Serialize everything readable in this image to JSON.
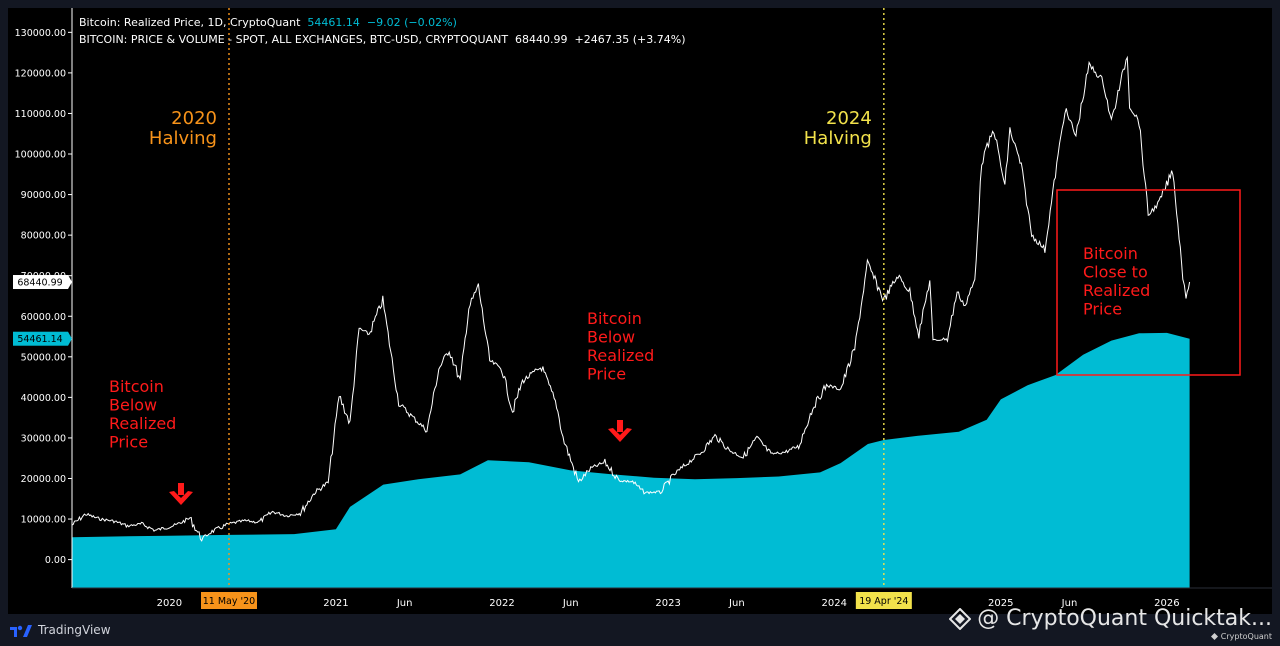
{
  "legend": {
    "line1_name": "Bitcoin: Realized Price, 1D, CryptoQuant",
    "line1_value": "54461.14",
    "line1_change": "−9.02 (−0.02%)",
    "line2_name": "BITCOIN: PRICE & VOLUME - SPOT, ALL EXCHANGES, BTC-USD, CRYPTOQUANT",
    "line2_value": "68440.99",
    "line2_change": "+2467.35 (+3.74%)"
  },
  "footer": {
    "brand": "TradingView",
    "watermark": "@ CryptoQuant Quicktak...",
    "watermark_small": "CryptoQuant"
  },
  "colors": {
    "background": "#000000",
    "frame": "#131722",
    "realized_fill": "#00bcd4",
    "price_line": "#ffffff",
    "halving_2020": "#f7931a",
    "halving_2024": "#f2e24b",
    "annotation_red": "#ff1a1a"
  },
  "chart_data": {
    "type": "area",
    "ylim": [
      -7000,
      136000
    ],
    "xlim": [
      "2019-06-01",
      "2026-08-20"
    ],
    "y_ticks": [
      "130000.00",
      "120000.00",
      "110000.00",
      "100000.00",
      "90000.00",
      "80000.00",
      "70000.00",
      "60000.00",
      "50000.00",
      "40000.00",
      "30000.00",
      "20000.00",
      "10000.00",
      "0.00"
    ],
    "y_tick_values": [
      130000,
      120000,
      110000,
      100000,
      90000,
      80000,
      70000,
      60000,
      50000,
      40000,
      30000,
      20000,
      10000,
      0
    ],
    "x_ticks": [
      {
        "label": "2020",
        "date": "2020-01-01"
      },
      {
        "label": "2021",
        "date": "2021-01-01"
      },
      {
        "label": "Jun",
        "date": "2021-06-01"
      },
      {
        "label": "2022",
        "date": "2022-01-01"
      },
      {
        "label": "Jun",
        "date": "2022-06-01"
      },
      {
        "label": "2023",
        "date": "2023-01-01"
      },
      {
        "label": "Jun",
        "date": "2023-06-01"
      },
      {
        "label": "2024",
        "date": "2024-01-01"
      },
      {
        "label": "2025",
        "date": "2025-01-01"
      },
      {
        "label": "Jun",
        "date": "2025-06-01"
      },
      {
        "label": "2026",
        "date": "2026-01-01"
      }
    ],
    "last_price_label": "68440.99",
    "last_realized_label": "54461.14",
    "series": [
      {
        "name": "Bitcoin: Realized Price",
        "kind": "area",
        "x": [
          "2019-06-01",
          "2019-09-01",
          "2020-01-01",
          "2020-05-11",
          "2020-10-01",
          "2021-01-01",
          "2021-02-01",
          "2021-04-15",
          "2021-07-01",
          "2021-10-01",
          "2021-12-01",
          "2022-03-01",
          "2022-06-01",
          "2022-09-01",
          "2022-12-01",
          "2023-03-01",
          "2023-06-01",
          "2023-09-01",
          "2023-12-01",
          "2024-01-15",
          "2024-03-15",
          "2024-04-19",
          "2024-07-01",
          "2024-10-01",
          "2024-12-01",
          "2025-01-01",
          "2025-03-01",
          "2025-05-01",
          "2025-07-01",
          "2025-09-01",
          "2025-11-01",
          "2026-01-01",
          "2026-02-20"
        ],
        "values": [
          5500,
          5700,
          5900,
          6100,
          6300,
          7500,
          13000,
          18500,
          19800,
          21000,
          24500,
          24000,
          22000,
          21000,
          20200,
          19800,
          20100,
          20500,
          21500,
          23800,
          28500,
          29500,
          30500,
          31500,
          34500,
          39500,
          43000,
          45500,
          50500,
          54000,
          55800,
          55900,
          54461
        ]
      },
      {
        "name": "Bitcoin Price",
        "kind": "line",
        "x": [
          "2019-06-01",
          "2019-07-01",
          "2019-08-01",
          "2019-09-01",
          "2019-10-01",
          "2019-11-01",
          "2019-12-01",
          "2020-01-15",
          "2020-02-15",
          "2020-03-12",
          "2020-04-01",
          "2020-05-11",
          "2020-06-15",
          "2020-07-15",
          "2020-08-15",
          "2020-09-15",
          "2020-10-15",
          "2020-11-15",
          "2020-12-15",
          "2021-01-08",
          "2021-02-01",
          "2021-02-21",
          "2021-03-15",
          "2021-04-14",
          "2021-05-19",
          "2021-06-20",
          "2021-07-20",
          "2021-08-15",
          "2021-09-07",
          "2021-10-01",
          "2021-10-20",
          "2021-11-10",
          "2021-12-05",
          "2022-01-01",
          "2022-01-24",
          "2022-02-15",
          "2022-03-29",
          "2022-05-01",
          "2022-05-15",
          "2022-06-18",
          "2022-07-15",
          "2022-08-15",
          "2022-09-15",
          "2022-10-15",
          "2022-11-09",
          "2022-12-15",
          "2023-01-15",
          "2023-02-15",
          "2023-03-15",
          "2023-04-14",
          "2023-05-15",
          "2023-06-15",
          "2023-07-15",
          "2023-08-15",
          "2023-09-15",
          "2023-10-15",
          "2023-11-15",
          "2023-12-15",
          "2024-01-15",
          "2024-02-15",
          "2024-03-14",
          "2024-04-19",
          "2024-05-20",
          "2024-06-15",
          "2024-07-05",
          "2024-07-29",
          "2024-08-05",
          "2024-09-06",
          "2024-09-27",
          "2024-10-15",
          "2024-11-05",
          "2024-11-20",
          "2024-12-17",
          "2025-01-10",
          "2025-01-21",
          "2025-02-15",
          "2025-03-10",
          "2025-04-08",
          "2025-05-01",
          "2025-05-22",
          "2025-06-15",
          "2025-07-14",
          "2025-08-14",
          "2025-09-01",
          "2025-10-06",
          "2025-10-11",
          "2025-11-01",
          "2025-11-21",
          "2025-12-15",
          "2026-01-14",
          "2026-02-05",
          "2026-02-12",
          "2026-02-20"
        ],
        "values": [
          8500,
          11200,
          10000,
          9500,
          8300,
          8800,
          7200,
          8500,
          10200,
          5000,
          6800,
          8800,
          9600,
          9200,
          11800,
          10800,
          11500,
          16500,
          19000,
          40500,
          33500,
          57000,
          55500,
          64000,
          38500,
          35000,
          31800,
          47000,
          51700,
          44000,
          62000,
          67500,
          49000,
          47000,
          36500,
          44000,
          47500,
          38000,
          30000,
          19100,
          22500,
          24000,
          19500,
          19200,
          16500,
          16700,
          21000,
          24000,
          26500,
          30500,
          27000,
          25200,
          30000,
          26000,
          26500,
          28000,
          37500,
          43000,
          42000,
          52000,
          73000,
          64000,
          70000,
          66000,
          55500,
          69000,
          54000,
          54500,
          66000,
          62500,
          69000,
          98000,
          106000,
          92000,
          106000,
          97000,
          80000,
          76500,
          95000,
          111000,
          104500,
          122000,
          118000,
          108000,
          124500,
          112000,
          108000,
          85000,
          88000,
          96000,
          70000,
          65000,
          68440.99
        ]
      }
    ],
    "events": [
      {
        "label_top": "2020",
        "label_bottom": "Halving",
        "date": "2020-05-11",
        "badge": "11 May '20"
      },
      {
        "label_top": "2024",
        "label_bottom": "Halving",
        "date": "2024-04-19",
        "badge": "19 Apr '24"
      }
    ],
    "annotations": [
      {
        "lines": [
          "Bitcoin",
          "Below",
          "Realized",
          "Price"
        ]
      },
      {
        "lines": [
          "Bitcoin",
          "Below",
          "Realized",
          "Price"
        ]
      },
      {
        "lines": [
          "Bitcoin",
          "Close to",
          "Realized",
          "Price"
        ]
      }
    ]
  }
}
